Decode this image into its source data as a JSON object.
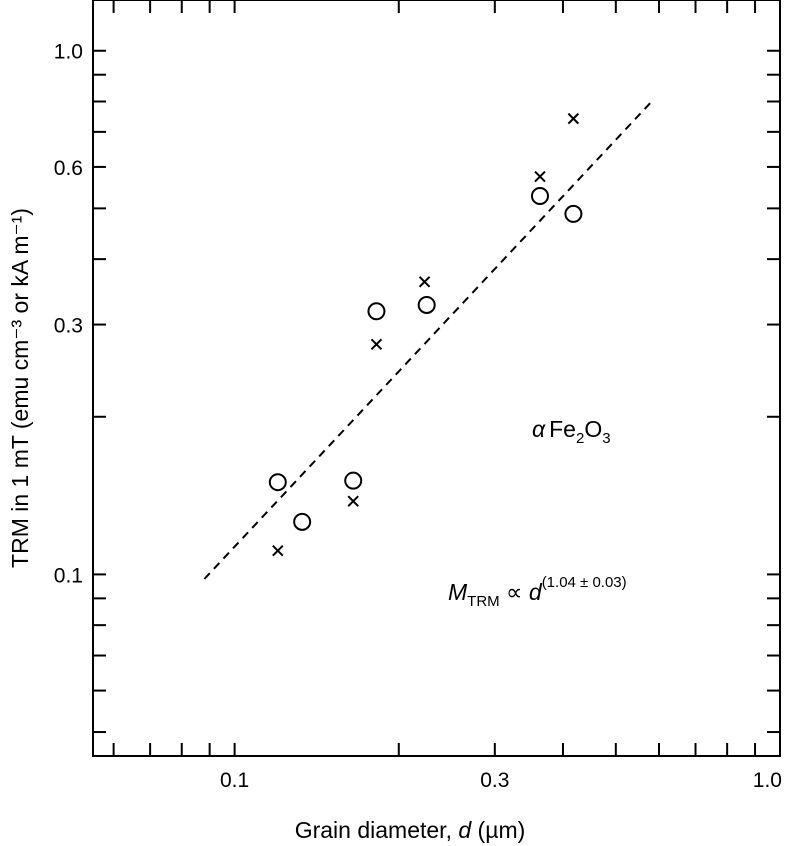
{
  "chart_data": {
    "type": "scatter",
    "xscale": "log",
    "yscale": "log",
    "xlim": [
      0.055,
      1.0
    ],
    "ylim": [
      0.045,
      1.25
    ],
    "xlabel_prefix": "Grain diameter, ",
    "xlabel_var": "d",
    "xlabel_unit": " (µm)",
    "ylabel": "TRM in 1 mT (emu cm⁻³ or kA m⁻¹)",
    "xtick_labels": [
      {
        "value": 0.1,
        "label": "0.1"
      },
      {
        "value": 0.3,
        "label": "0.3"
      },
      {
        "value": 1.0,
        "label": "1.0"
      }
    ],
    "ytick_labels": [
      {
        "value": 0.1,
        "label": "0.1"
      },
      {
        "value": 0.3,
        "label": "0.3"
      },
      {
        "value": 0.6,
        "label": "0.6"
      },
      {
        "value": 1.0,
        "label": "1.0"
      }
    ],
    "x_minor_ticks": [
      0.06,
      0.07,
      0.08,
      0.09,
      0.2,
      0.4,
      0.5,
      0.6,
      0.7,
      0.8,
      0.9
    ],
    "y_minor_ticks": [
      0.05,
      0.06,
      0.07,
      0.08,
      0.09,
      0.2,
      0.4,
      0.5,
      0.7,
      0.8,
      0.9
    ],
    "series": [
      {
        "marker": "circle",
        "points": [
          {
            "x": 0.12,
            "y": 0.15
          },
          {
            "x": 0.133,
            "y": 0.126
          },
          {
            "x": 0.165,
            "y": 0.151
          },
          {
            "x": 0.182,
            "y": 0.318
          },
          {
            "x": 0.225,
            "y": 0.327
          },
          {
            "x": 0.363,
            "y": 0.528
          },
          {
            "x": 0.418,
            "y": 0.488
          }
        ]
      },
      {
        "marker": "cross",
        "points": [
          {
            "x": 0.12,
            "y": 0.111
          },
          {
            "x": 0.165,
            "y": 0.138
          },
          {
            "x": 0.182,
            "y": 0.275
          },
          {
            "x": 0.223,
            "y": 0.362
          },
          {
            "x": 0.363,
            "y": 0.575
          },
          {
            "x": 0.418,
            "y": 0.742
          }
        ]
      }
    ],
    "fit_line": {
      "x": [
        0.088,
        0.585
      ],
      "y": [
        0.098,
        0.805
      ],
      "style": "dashed"
    },
    "annotations": {
      "alpha": "α",
      "fe": "Fe",
      "sub2": "2",
      "o": "O",
      "sub3": "3",
      "m": "M",
      "m_sub": "TRM",
      "prop": " ∝ ",
      "d": "d",
      "exponent": "(1.04 ± 0.03)"
    }
  }
}
